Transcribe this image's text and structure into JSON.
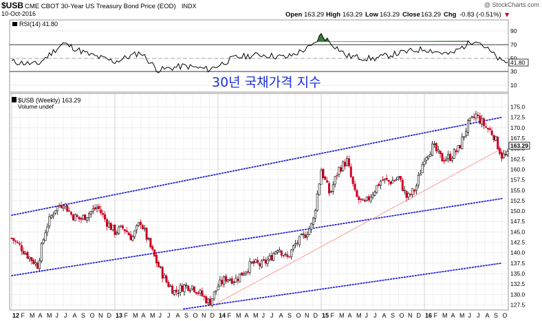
{
  "header": {
    "symbol": "$USB",
    "description": "CME CBOT 30-Year US Treasury Bond Price (EOD)",
    "exchange": "INDX",
    "date": "10-Oct-2016",
    "copyright": "@ StockCharts.com",
    "open_label": "Open",
    "open_value": "163.29",
    "high_label": "High",
    "high_value": "163.29",
    "low_label": "Low",
    "low_value": "163.29",
    "close_label": "Close",
    "close_value": "163.29",
    "chg_label": "Chg",
    "chg_value": "-0.83 (-0.51%)",
    "chg_arrow": "▼"
  },
  "rsi_panel": {
    "legend": "RSI(14) 41.80",
    "current_label": "41.80",
    "ticks": [
      "90",
      "70",
      "50",
      "30",
      "10"
    ],
    "overbought": 70,
    "oversold": 30
  },
  "price_panel": {
    "legend": "$USB (Weekly) 163.29",
    "volume_label": "Volume undef",
    "current_label": "163.29",
    "annotation": "30년 국채가격 지수",
    "y_ticks": [
      "175.0",
      "172.5",
      "170.0",
      "167.5",
      "165.0",
      "162.5",
      "160.0",
      "157.5",
      "155.0",
      "152.5",
      "150.0",
      "147.5",
      "145.0",
      "142.5",
      "140.0",
      "137.5",
      "135.0",
      "132.5",
      "130.0",
      "127.5"
    ]
  },
  "x_axis": {
    "labels": [
      "12",
      "F",
      "M",
      "A",
      "M",
      "J",
      "J",
      "A",
      "S",
      "O",
      "N",
      "D",
      "13",
      "F",
      "M",
      "A",
      "M",
      "J",
      "J",
      "A",
      "S",
      "O",
      "N",
      "D",
      "14",
      "F",
      "M",
      "A",
      "M",
      "J",
      "J",
      "A",
      "S",
      "O",
      "N",
      "D",
      "15",
      "F",
      "M",
      "A",
      "M",
      "J",
      "J",
      "A",
      "S",
      "O",
      "N",
      "D",
      "16",
      "F",
      "M",
      "A",
      "M",
      "J",
      "J",
      "A",
      "S",
      "O"
    ]
  },
  "colors": {
    "up": "#000000",
    "down": "#cc0022",
    "channel": "#1f1fd6",
    "support": "#ff9999",
    "rsi_fill": "#3a7a3a",
    "annotation": "#1a2fd8"
  },
  "chart_data": {
    "type": "candlestick",
    "title": "$USB CME CBOT 30-Year US Treasury Bond Price (EOD) INDX",
    "interval": "Weekly",
    "x_range": [
      "2012-01",
      "2016-10"
    ],
    "ylim": [
      126.5,
      177
    ],
    "weekly_close_points": [
      {
        "x": "2012-01",
        "y": 143.5
      },
      {
        "x": "2012-02",
        "y": 141.5
      },
      {
        "x": "2012-03",
        "y": 139.0
      },
      {
        "x": "2012-04",
        "y": 137.0
      },
      {
        "x": "2012-05",
        "y": 146.0
      },
      {
        "x": "2012-06",
        "y": 150.5
      },
      {
        "x": "2012-07",
        "y": 152.0
      },
      {
        "x": "2012-08",
        "y": 149.0
      },
      {
        "x": "2012-09",
        "y": 148.0
      },
      {
        "x": "2012-10",
        "y": 149.5
      },
      {
        "x": "2012-11",
        "y": 151.0
      },
      {
        "x": "2012-12",
        "y": 147.5
      },
      {
        "x": "2013-01",
        "y": 145.0
      },
      {
        "x": "2013-02",
        "y": 146.0
      },
      {
        "x": "2013-03",
        "y": 143.5
      },
      {
        "x": "2013-04",
        "y": 147.5
      },
      {
        "x": "2013-05",
        "y": 142.0
      },
      {
        "x": "2013-06",
        "y": 137.0
      },
      {
        "x": "2013-07",
        "y": 133.0
      },
      {
        "x": "2013-08",
        "y": 130.5
      },
      {
        "x": "2013-09",
        "y": 132.0
      },
      {
        "x": "2013-10",
        "y": 132.0
      },
      {
        "x": "2013-11",
        "y": 130.0
      },
      {
        "x": "2013-12",
        "y": 128.0
      },
      {
        "x": "2014-01",
        "y": 132.0
      },
      {
        "x": "2014-02",
        "y": 134.0
      },
      {
        "x": "2014-03",
        "y": 133.5
      },
      {
        "x": "2014-04",
        "y": 135.5
      },
      {
        "x": "2014-05",
        "y": 137.5
      },
      {
        "x": "2014-06",
        "y": 137.0
      },
      {
        "x": "2014-07",
        "y": 138.5
      },
      {
        "x": "2014-08",
        "y": 141.5
      },
      {
        "x": "2014-09",
        "y": 138.5
      },
      {
        "x": "2014-10",
        "y": 142.0
      },
      {
        "x": "2014-11",
        "y": 144.0
      },
      {
        "x": "2014-12",
        "y": 147.0
      },
      {
        "x": "2015-01",
        "y": 160.0
      },
      {
        "x": "2015-02",
        "y": 154.0
      },
      {
        "x": "2015-03",
        "y": 160.0
      },
      {
        "x": "2015-04",
        "y": 162.0
      },
      {
        "x": "2015-05",
        "y": 153.5
      },
      {
        "x": "2015-06",
        "y": 151.5
      },
      {
        "x": "2015-07",
        "y": 154.5
      },
      {
        "x": "2015-08",
        "y": 157.5
      },
      {
        "x": "2015-09",
        "y": 157.0
      },
      {
        "x": "2015-10",
        "y": 158.0
      },
      {
        "x": "2015-11",
        "y": 153.0
      },
      {
        "x": "2015-12",
        "y": 155.5
      },
      {
        "x": "2016-01",
        "y": 163.0
      },
      {
        "x": "2016-02",
        "y": 165.5
      },
      {
        "x": "2016-03",
        "y": 162.5
      },
      {
        "x": "2016-04",
        "y": 163.0
      },
      {
        "x": "2016-05",
        "y": 165.0
      },
      {
        "x": "2016-06",
        "y": 170.5
      },
      {
        "x": "2016-07",
        "y": 173.0
      },
      {
        "x": "2016-08",
        "y": 170.5
      },
      {
        "x": "2016-09",
        "y": 168.5
      },
      {
        "x": "2016-10",
        "y": 163.29
      }
    ],
    "rsi_series": [
      {
        "x": "2012-01",
        "y": 42
      },
      {
        "x": "2012-04",
        "y": 38
      },
      {
        "x": "2012-07",
        "y": 68
      },
      {
        "x": "2012-10",
        "y": 52
      },
      {
        "x": "2013-01",
        "y": 42
      },
      {
        "x": "2013-04",
        "y": 55
      },
      {
        "x": "2013-06",
        "y": 30
      },
      {
        "x": "2013-09",
        "y": 36
      },
      {
        "x": "2013-12",
        "y": 31
      },
      {
        "x": "2014-03",
        "y": 48
      },
      {
        "x": "2014-06",
        "y": 52
      },
      {
        "x": "2014-09",
        "y": 48
      },
      {
        "x": "2014-12",
        "y": 64
      },
      {
        "x": "2015-01",
        "y": 80
      },
      {
        "x": "2015-04",
        "y": 50
      },
      {
        "x": "2015-07",
        "y": 46
      },
      {
        "x": "2015-10",
        "y": 54
      },
      {
        "x": "2016-01",
        "y": 60
      },
      {
        "x": "2016-04",
        "y": 52
      },
      {
        "x": "2016-07",
        "y": 74
      },
      {
        "x": "2016-10",
        "y": 41.8
      }
    ],
    "trendlines": [
      {
        "name": "channel-upper",
        "color": "#1f1fd6",
        "style": "dotted",
        "from": {
          "x": "2012-01",
          "y": 149.0
        },
        "to": {
          "x": "2016-10",
          "y": 172.5
        }
      },
      {
        "name": "channel-middle",
        "color": "#1f1fd6",
        "style": "dotted",
        "from": {
          "x": "2012-01",
          "y": 134.5
        },
        "to": {
          "x": "2016-10",
          "y": 153.0
        }
      },
      {
        "name": "channel-lower",
        "color": "#1f1fd6",
        "style": "dotted",
        "from": {
          "x": "2013-09",
          "y": 126.5
        },
        "to": {
          "x": "2016-10",
          "y": 137.5
        }
      },
      {
        "name": "support",
        "color": "#ff9999",
        "style": "solid",
        "from": {
          "x": "2014-01",
          "y": 128.0
        },
        "to": {
          "x": "2016-10",
          "y": 165.0
        }
      }
    ],
    "grid": true
  }
}
